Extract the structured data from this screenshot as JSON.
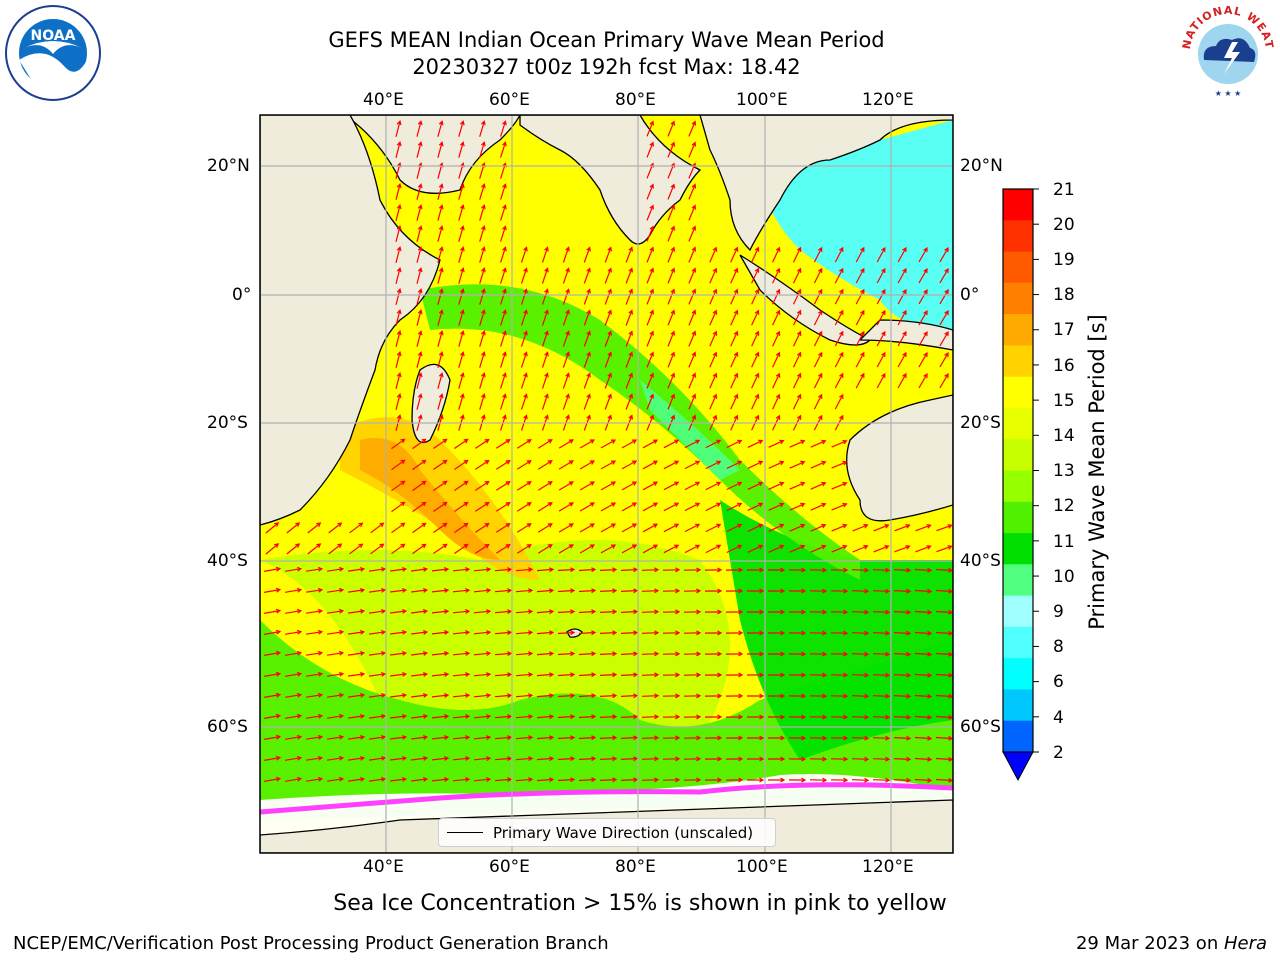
{
  "title": {
    "line1": "GEFS MEAN Indian Ocean Primary Wave Mean Period",
    "line2": "20230327 t00z 192h fcst   Max: 18.42"
  },
  "map": {
    "lon_ticks_top": [
      "40°E",
      "60°E",
      "80°E",
      "100°E",
      "120°E"
    ],
    "lon_ticks_bottom": [
      "40°E",
      "60°E",
      "80°E",
      "100°E",
      "120°E"
    ],
    "lat_ticks_left": [
      "20°N",
      "0°",
      "20°S",
      "40°S",
      "60°S"
    ],
    "lat_ticks_right": [
      "20°N",
      "0°",
      "20°S",
      "40°S",
      "60°S"
    ],
    "land_color": "#efecdc",
    "arrow_color": "#ff0000",
    "legend_label": "Primary Wave Direction (unscaled)"
  },
  "colorbar": {
    "label": "Primary Wave Mean Period [s]",
    "ticks": [
      "21",
      "20",
      "19",
      "18",
      "17",
      "16",
      "15",
      "14",
      "13",
      "12",
      "11",
      "10",
      "9",
      "8",
      "6",
      "4",
      "2"
    ],
    "colors": [
      "#ff0000",
      "#ff3000",
      "#ff5a00",
      "#ff8000",
      "#ffaa00",
      "#ffd200",
      "#ffff00",
      "#e8ff00",
      "#c8ff00",
      "#96ff00",
      "#50f000",
      "#00e000",
      "#50ff80",
      "#a0ffff",
      "#50ffff",
      "#00ffff",
      "#00c8ff",
      "#0064ff",
      "#0000ff"
    ]
  },
  "footer": {
    "note": "Sea Ice Concentration > 15% is shown in pink to yellow",
    "credit": "NCEP/EMC/Verification Post Processing Product Generation Branch",
    "date": "29 Mar 2023 on ",
    "host": "Hera"
  },
  "logos": {
    "noaa_text": "NOAA",
    "nws_text": "NATIONAL WEATHER SERVICE"
  }
}
